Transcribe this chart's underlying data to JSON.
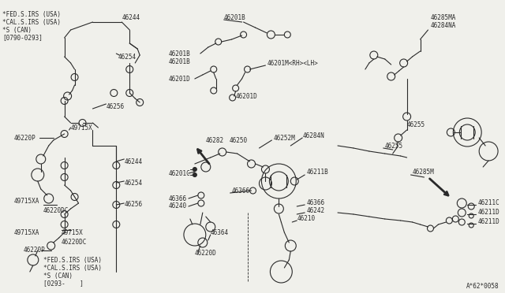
{
  "bg_color": "#f0f0eb",
  "line_color": "#2a2a2a",
  "diagram_id": "A*62*0058",
  "top_left_labels": [
    "*FED.S.IRS (USA)",
    "*CAL.S.IRS (USA)",
    "*S (CAN)",
    "[0790-0293]"
  ],
  "bottom_left_labels": [
    "*FED.S.IRS (USA)",
    "*CAL.S.IRS (USA)",
    "*S (CAN)",
    "[0293-    ]"
  ],
  "figsize": [
    6.4,
    3.72
  ],
  "dpi": 100
}
